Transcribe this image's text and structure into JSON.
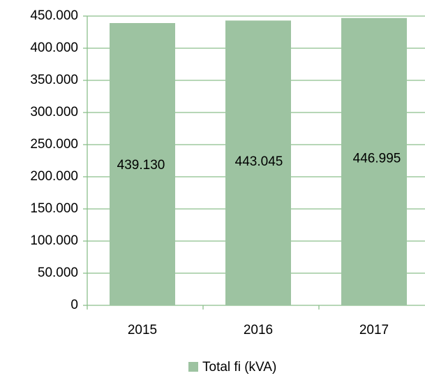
{
  "chart_data": {
    "type": "bar",
    "categories": [
      "2015",
      "2016",
      "2017"
    ],
    "series": [
      {
        "name": "Total fi (kVA)",
        "color": "#9dc3a1",
        "values": [
          439130,
          443045,
          446995
        ],
        "value_labels": [
          "439.130",
          "443.045",
          "446.995"
        ]
      }
    ],
    "ylim": [
      0,
      450000
    ],
    "yticks": [
      0,
      {
        "value": 50000,
        "label": "50.000"
      },
      {
        "value": 100000,
        "label": "100.000"
      },
      {
        "value": 150000,
        "label": "150.000"
      },
      {
        "value": 200000,
        "label": "200.000"
      },
      {
        "value": 250000,
        "label": "250.000"
      },
      {
        "value": 300000,
        "label": "300.000"
      },
      {
        "value": 350000,
        "label": "350.000"
      },
      {
        "value": 400000,
        "label": "400.000"
      },
      {
        "value": 450000,
        "label": "450.000"
      }
    ],
    "grid": true,
    "legend": "bottom"
  }
}
